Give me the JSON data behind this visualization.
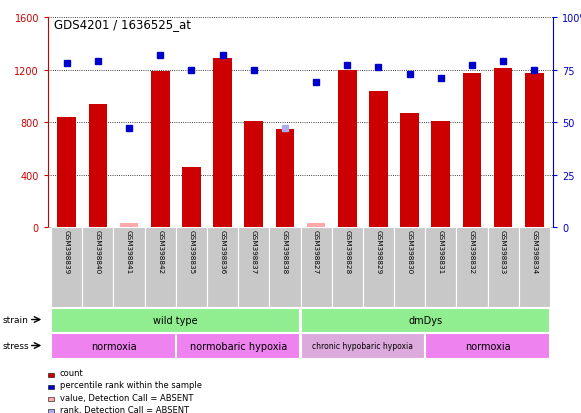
{
  "title": "GDS4201 / 1636525_at",
  "samples": [
    "GSM398839",
    "GSM398840",
    "GSM398841",
    "GSM398842",
    "GSM398835",
    "GSM398836",
    "GSM398837",
    "GSM398838",
    "GSM398827",
    "GSM398828",
    "GSM398829",
    "GSM398830",
    "GSM398831",
    "GSM398832",
    "GSM398833",
    "GSM398834"
  ],
  "count_values": [
    840,
    940,
    30,
    1190,
    460,
    1290,
    810,
    750,
    30,
    1200,
    1040,
    870,
    810,
    1170,
    1210,
    1170
  ],
  "count_absent": [
    false,
    false,
    true,
    false,
    false,
    false,
    false,
    false,
    true,
    false,
    false,
    false,
    false,
    false,
    false,
    false
  ],
  "percentile_values": [
    78,
    79,
    47,
    82,
    75,
    82,
    75,
    47,
    69,
    77,
    76,
    73,
    71,
    77,
    79,
    75
  ],
  "percentile_absent": [
    false,
    false,
    false,
    false,
    false,
    false,
    false,
    true,
    false,
    false,
    false,
    false,
    false,
    false,
    false,
    false
  ],
  "ylim_left": [
    0,
    1600
  ],
  "ylim_right": [
    0,
    100
  ],
  "yticks_left": [
    0,
    400,
    800,
    1200,
    1600
  ],
  "yticks_right": [
    0,
    25,
    50,
    75,
    100
  ],
  "bar_color": "#cc0000",
  "bar_absent_color": "#ffaaaa",
  "dot_color": "#0000cc",
  "dot_absent_color": "#aaaaee",
  "strain_groups": [
    {
      "label": "wild type",
      "start": 0,
      "end": 8,
      "color": "#90ee90"
    },
    {
      "label": "dmDys",
      "start": 8,
      "end": 16,
      "color": "#90ee90"
    }
  ],
  "stress_groups": [
    {
      "label": "normoxia",
      "start": 0,
      "end": 4,
      "color": "#ee82ee"
    },
    {
      "label": "normobaric hypoxia",
      "start": 4,
      "end": 8,
      "color": "#ee82ee"
    },
    {
      "label": "chronic hypobaric hypoxia",
      "start": 8,
      "end": 12,
      "color": "#ddaadd"
    },
    {
      "label": "normoxia",
      "start": 12,
      "end": 16,
      "color": "#ee82ee"
    }
  ],
  "legend_items": [
    {
      "label": "count",
      "color": "#cc0000",
      "row": 0,
      "col": 0
    },
    {
      "label": "percentile rank within the sample",
      "color": "#0000cc",
      "row": 1,
      "col": 0
    },
    {
      "label": "value, Detection Call = ABSENT",
      "color": "#ffaaaa",
      "row": 2,
      "col": 0
    },
    {
      "label": "rank, Detection Call = ABSENT",
      "color": "#aaaaee",
      "row": 3,
      "col": 0
    }
  ],
  "background_color": "#ffffff",
  "tick_bg_color": "#c8c8c8",
  "xlabel_color": "#cc0000",
  "right_axis_color": "#0000cc",
  "right_ytick_labels": [
    "0",
    "25",
    "50",
    "75",
    "100%"
  ]
}
